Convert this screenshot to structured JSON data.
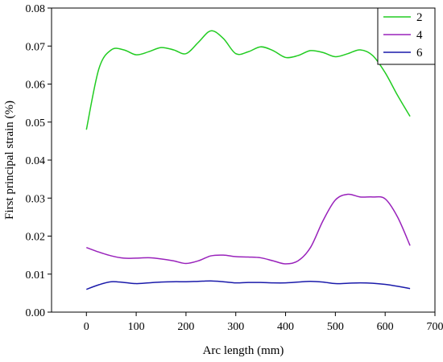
{
  "chart_data": {
    "type": "line",
    "title": "",
    "xlabel": "Arc length (mm)",
    "ylabel": "First principal strain (%)",
    "xlim": [
      -70,
      700
    ],
    "ylim": [
      0.0,
      0.08
    ],
    "xticks": [
      0,
      100,
      200,
      300,
      400,
      500,
      600,
      700
    ],
    "yticks": [
      0.0,
      0.01,
      0.02,
      0.03,
      0.04,
      0.05,
      0.06,
      0.07,
      0.08
    ],
    "xtick_labels": [
      "0",
      "100",
      "200",
      "300",
      "400",
      "500",
      "600",
      "700"
    ],
    "ytick_labels": [
      "0.00",
      "0.01",
      "0.02",
      "0.03",
      "0.04",
      "0.05",
      "0.06",
      "0.07",
      "0.08"
    ],
    "grid": false,
    "legend_position": "top-right",
    "series": [
      {
        "name": "2",
        "color": "#22cc22",
        "x": [
          0,
          25,
          50,
          75,
          100,
          125,
          150,
          175,
          200,
          225,
          250,
          275,
          300,
          325,
          350,
          375,
          400,
          425,
          450,
          475,
          500,
          525,
          550,
          575,
          600,
          625,
          650
        ],
        "y": [
          0.048,
          0.064,
          0.069,
          0.069,
          0.0677,
          0.0685,
          0.0696,
          0.069,
          0.068,
          0.071,
          0.074,
          0.072,
          0.068,
          0.0685,
          0.0698,
          0.0688,
          0.067,
          0.0675,
          0.0688,
          0.0683,
          0.0672,
          0.068,
          0.069,
          0.0675,
          0.063,
          0.057,
          0.0515
        ]
      },
      {
        "name": "4",
        "color": "#9922bb",
        "x": [
          0,
          25,
          50,
          75,
          100,
          125,
          150,
          175,
          200,
          225,
          250,
          275,
          300,
          325,
          350,
          375,
          400,
          425,
          450,
          475,
          500,
          525,
          550,
          575,
          600,
          625,
          650
        ],
        "y": [
          0.017,
          0.0158,
          0.0148,
          0.0142,
          0.0142,
          0.0143,
          0.014,
          0.0135,
          0.0128,
          0.0135,
          0.0148,
          0.015,
          0.0146,
          0.0145,
          0.0143,
          0.0135,
          0.0127,
          0.0135,
          0.017,
          0.024,
          0.0295,
          0.031,
          0.0303,
          0.0303,
          0.0298,
          0.025,
          0.0175
        ]
      },
      {
        "name": "6",
        "color": "#1a1aaa",
        "x": [
          0,
          25,
          50,
          75,
          100,
          125,
          150,
          175,
          200,
          225,
          250,
          275,
          300,
          325,
          350,
          375,
          400,
          425,
          450,
          475,
          500,
          525,
          550,
          575,
          600,
          625,
          650
        ],
        "y": [
          0.006,
          0.0072,
          0.008,
          0.0078,
          0.0075,
          0.0077,
          0.0079,
          0.008,
          0.008,
          0.0081,
          0.0082,
          0.008,
          0.0077,
          0.0078,
          0.0078,
          0.0077,
          0.0077,
          0.0079,
          0.0081,
          0.0079,
          0.0075,
          0.0076,
          0.0077,
          0.0076,
          0.0073,
          0.0068,
          0.0062
        ]
      }
    ]
  }
}
